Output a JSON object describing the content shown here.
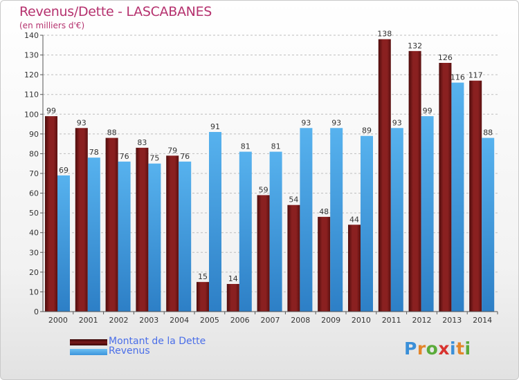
{
  "header": {
    "title": "Revenus/Dette - LASCABANES",
    "subtitle": "(en milliers d'€)"
  },
  "legend": {
    "dette_label": "Montant de la Dette",
    "revenus_label": "Revenus"
  },
  "logo": {
    "text": "Proxiti"
  },
  "colors": {
    "dette": "#7a1a1a",
    "revenus": "#4aa3e3",
    "axis_text": "#333333",
    "title": "#b5316e"
  },
  "chart_data": {
    "type": "bar",
    "title": "Revenus/Dette - LASCABANES",
    "subtitle": "(en milliers d'€)",
    "categories": [
      "2000",
      "2001",
      "2002",
      "2003",
      "2004",
      "2005",
      "2006",
      "2007",
      "2008",
      "2009",
      "2010",
      "2011",
      "2012",
      "2013",
      "2014"
    ],
    "series": [
      {
        "name": "Montant de la Dette",
        "values": [
          99,
          93,
          88,
          83,
          79,
          15,
          14,
          59,
          54,
          48,
          44,
          138,
          132,
          126,
          117
        ]
      },
      {
        "name": "Revenus",
        "values": [
          69,
          78,
          76,
          75,
          76,
          91,
          81,
          81,
          93,
          93,
          89,
          93,
          99,
          116,
          88
        ]
      }
    ],
    "ylim": [
      0,
      140
    ],
    "yticks": [
      0,
      10,
      20,
      30,
      40,
      50,
      60,
      70,
      80,
      90,
      100,
      110,
      120,
      130,
      140
    ],
    "grid": true,
    "legend_position": "bottom-left"
  }
}
